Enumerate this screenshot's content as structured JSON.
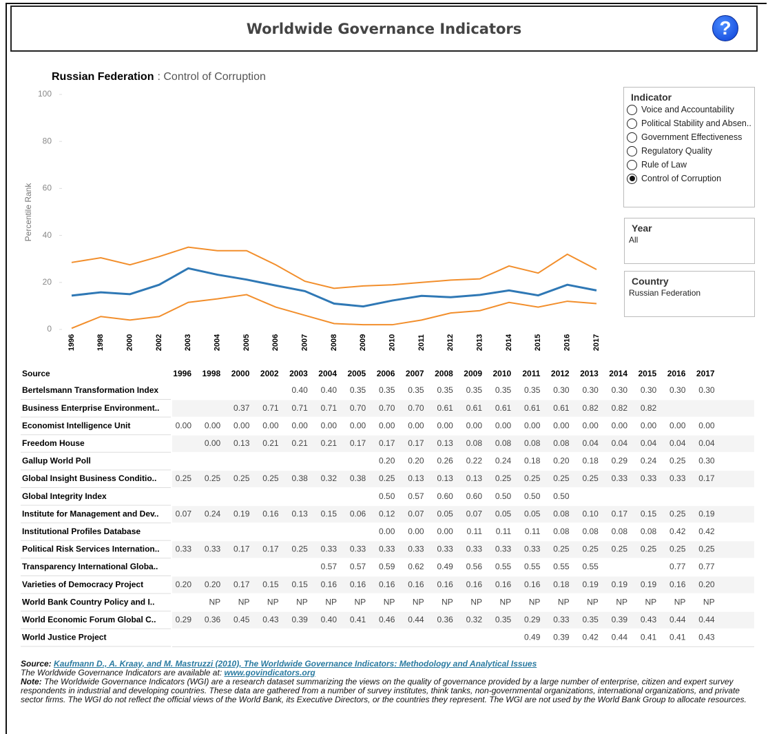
{
  "header": {
    "title": "Worldwide Governance Indicators",
    "help_icon": "?"
  },
  "chart_data": {
    "type": "line",
    "title_bold": "Russian Federation",
    "title_rest": ": Control of Corruption",
    "y_label": "Percentile Rank",
    "categories": [
      "1996",
      "1998",
      "2000",
      "2002",
      "2003",
      "2004",
      "2005",
      "2006",
      "2007",
      "2008",
      "2009",
      "2010",
      "2011",
      "2012",
      "2013",
      "2014",
      "2015",
      "2016",
      "2017"
    ],
    "series": [
      {
        "color": "#f28e2b",
        "values": [
          28.5,
          30.5,
          27.5,
          31,
          35,
          33.5,
          33.5,
          27.5,
          20.5,
          17.5,
          18.5,
          19,
          20,
          21,
          21.5,
          27,
          24,
          32,
          25.5
        ]
      },
      {
        "color": "#2f78b5",
        "values": [
          14.4,
          15.8,
          15,
          19,
          26,
          23.3,
          21.2,
          18.7,
          16.3,
          11,
          9.8,
          12.3,
          14.3,
          13.7,
          14.7,
          16.6,
          14.5,
          19,
          16.6
        ]
      },
      {
        "color": "#f28e2b",
        "values": [
          0.5,
          5.5,
          4,
          5.5,
          11.5,
          13,
          14.8,
          9.5,
          6,
          2.5,
          2,
          2,
          4,
          7,
          8,
          11.5,
          9.5,
          12,
          11
        ]
      }
    ],
    "ylim": [
      0,
      100
    ],
    "yticks": [
      0,
      20,
      40,
      60,
      80,
      100
    ],
    "grid": false
  },
  "filters": {
    "indicator": {
      "title": "Indicator",
      "options": [
        "Voice and Accountability",
        "Political Stability and Absen..",
        "Government Effectiveness",
        "Regulatory Quality",
        "Rule of Law",
        "Control of Corruption"
      ],
      "selected": 5
    },
    "year": {
      "title": "Year",
      "value": "All"
    },
    "country": {
      "title": "Country",
      "value": "Russian Federation"
    }
  },
  "table": {
    "source_header": "Source",
    "columns": [
      "1996",
      "1998",
      "2000",
      "2002",
      "2003",
      "2004",
      "2005",
      "2006",
      "2007",
      "2008",
      "2009",
      "2010",
      "2011",
      "2012",
      "2013",
      "2014",
      "2015",
      "2016",
      "2017"
    ],
    "rows": [
      {
        "source": "Bertelsmann Transformation Index",
        "cells": [
          null,
          null,
          null,
          null,
          "0.40",
          "0.40",
          "0.35",
          "0.35",
          "0.35",
          "0.35",
          "0.35",
          "0.35",
          "0.35",
          "0.30",
          "0.30",
          "0.30",
          "0.30",
          "0.30",
          "0.30"
        ]
      },
      {
        "source": "Business Enterprise Environment..",
        "cells": [
          null,
          null,
          "0.37",
          "0.71",
          "0.71",
          "0.71",
          "0.70",
          "0.70",
          "0.70",
          "0.61",
          "0.61",
          "0.61",
          "0.61",
          "0.61",
          "0.82",
          "0.82",
          "0.82",
          null,
          null
        ]
      },
      {
        "source": "Economist Intelligence Unit",
        "cells": [
          "0.00",
          "0.00",
          "0.00",
          "0.00",
          "0.00",
          "0.00",
          "0.00",
          "0.00",
          "0.00",
          "0.00",
          "0.00",
          "0.00",
          "0.00",
          "0.00",
          "0.00",
          "0.00",
          "0.00",
          "0.00",
          "0.00"
        ]
      },
      {
        "source": "Freedom House",
        "cells": [
          null,
          "0.00",
          "0.13",
          "0.21",
          "0.21",
          "0.21",
          "0.17",
          "0.17",
          "0.17",
          "0.13",
          "0.08",
          "0.08",
          "0.08",
          "0.08",
          "0.04",
          "0.04",
          "0.04",
          "0.04",
          "0.04"
        ]
      },
      {
        "source": "Gallup World Poll",
        "cells": [
          null,
          null,
          null,
          null,
          null,
          null,
          null,
          "0.20",
          "0.20",
          "0.26",
          "0.22",
          "0.24",
          "0.18",
          "0.20",
          "0.18",
          "0.29",
          "0.24",
          "0.25",
          "0.30"
        ]
      },
      {
        "source": "Global Insight Business Conditio..",
        "cells": [
          "0.25",
          "0.25",
          "0.25",
          "0.25",
          "0.38",
          "0.32",
          "0.38",
          "0.25",
          "0.13",
          "0.13",
          "0.13",
          "0.25",
          "0.25",
          "0.25",
          "0.25",
          "0.33",
          "0.33",
          "0.33",
          "0.17"
        ]
      },
      {
        "source": "Global Integrity Index",
        "cells": [
          null,
          null,
          null,
          null,
          null,
          null,
          null,
          "0.50",
          "0.57",
          "0.60",
          "0.60",
          "0.50",
          "0.50",
          "0.50",
          null,
          null,
          null,
          null,
          null
        ]
      },
      {
        "source": "Institute for Management and Dev..",
        "cells": [
          "0.07",
          "0.24",
          "0.19",
          "0.16",
          "0.13",
          "0.15",
          "0.06",
          "0.12",
          "0.07",
          "0.05",
          "0.07",
          "0.05",
          "0.05",
          "0.08",
          "0.10",
          "0.17",
          "0.15",
          "0.25",
          "0.19"
        ]
      },
      {
        "source": "Institutional Profiles Database",
        "cells": [
          null,
          null,
          null,
          null,
          null,
          null,
          null,
          "0.00",
          "0.00",
          "0.00",
          "0.11",
          "0.11",
          "0.11",
          "0.08",
          "0.08",
          "0.08",
          "0.08",
          "0.42",
          "0.42"
        ]
      },
      {
        "source": "Political Risk Services Internation..",
        "cells": [
          "0.33",
          "0.33",
          "0.17",
          "0.17",
          "0.25",
          "0.33",
          "0.33",
          "0.33",
          "0.33",
          "0.33",
          "0.33",
          "0.33",
          "0.33",
          "0.25",
          "0.25",
          "0.25",
          "0.25",
          "0.25",
          "0.25"
        ]
      },
      {
        "source": "Transparency International Globa..",
        "cells": [
          null,
          null,
          null,
          null,
          null,
          "0.57",
          "0.57",
          "0.59",
          "0.62",
          "0.49",
          "0.56",
          "0.55",
          "0.55",
          "0.55",
          "0.55",
          null,
          null,
          "0.77",
          "0.77"
        ]
      },
      {
        "source": "Varieties of Democracy Project",
        "cells": [
          "0.20",
          "0.20",
          "0.17",
          "0.15",
          "0.15",
          "0.16",
          "0.16",
          "0.16",
          "0.16",
          "0.16",
          "0.16",
          "0.16",
          "0.16",
          "0.18",
          "0.19",
          "0.19",
          "0.19",
          "0.16",
          "0.20"
        ]
      },
      {
        "source": "World Bank Country Policy and I..",
        "cells": [
          null,
          "NP",
          "NP",
          "NP",
          "NP",
          "NP",
          "NP",
          "NP",
          "NP",
          "NP",
          "NP",
          "NP",
          "NP",
          "NP",
          "NP",
          "NP",
          "NP",
          "NP",
          "NP"
        ]
      },
      {
        "source": "World Economic Forum Global C..",
        "cells": [
          "0.29",
          "0.36",
          "0.45",
          "0.43",
          "0.39",
          "0.40",
          "0.41",
          "0.46",
          "0.44",
          "0.36",
          "0.32",
          "0.35",
          "0.29",
          "0.33",
          "0.35",
          "0.39",
          "0.43",
          "0.44",
          "0.44"
        ]
      },
      {
        "source": "World Justice Project",
        "cells": [
          null,
          null,
          null,
          null,
          null,
          null,
          null,
          null,
          null,
          null,
          null,
          null,
          "0.49",
          "0.39",
          "0.42",
          "0.44",
          "0.41",
          "0.41",
          "0.43"
        ]
      }
    ]
  },
  "footer": {
    "source_label": "Source:",
    "source_link": "Kaufmann D., A. Kraay, and M. Mastruzzi (2010), The Worldwide Governance Indicators: Methodology and Analytical Issues",
    "available_text": "The Worldwide Governance Indicators are available at:",
    "available_link": "www.govindicators.org",
    "note_label": "Note:",
    "note_text": "The Worldwide Governance Indicators (WGI) are a research dataset summarizing the views on the quality of governance provided by a large number of enterprise, citizen and expert survey respondents in industrial and developing countries. These data are gathered from a number of survey institutes, think tanks, non-governmental organizations, international organizations, and private sector firms. The WGI do not reflect the official views of the World Bank, its Executive Directors, or the countries they represent. The WGI are not used by the World Bank Group to allocate resources."
  }
}
